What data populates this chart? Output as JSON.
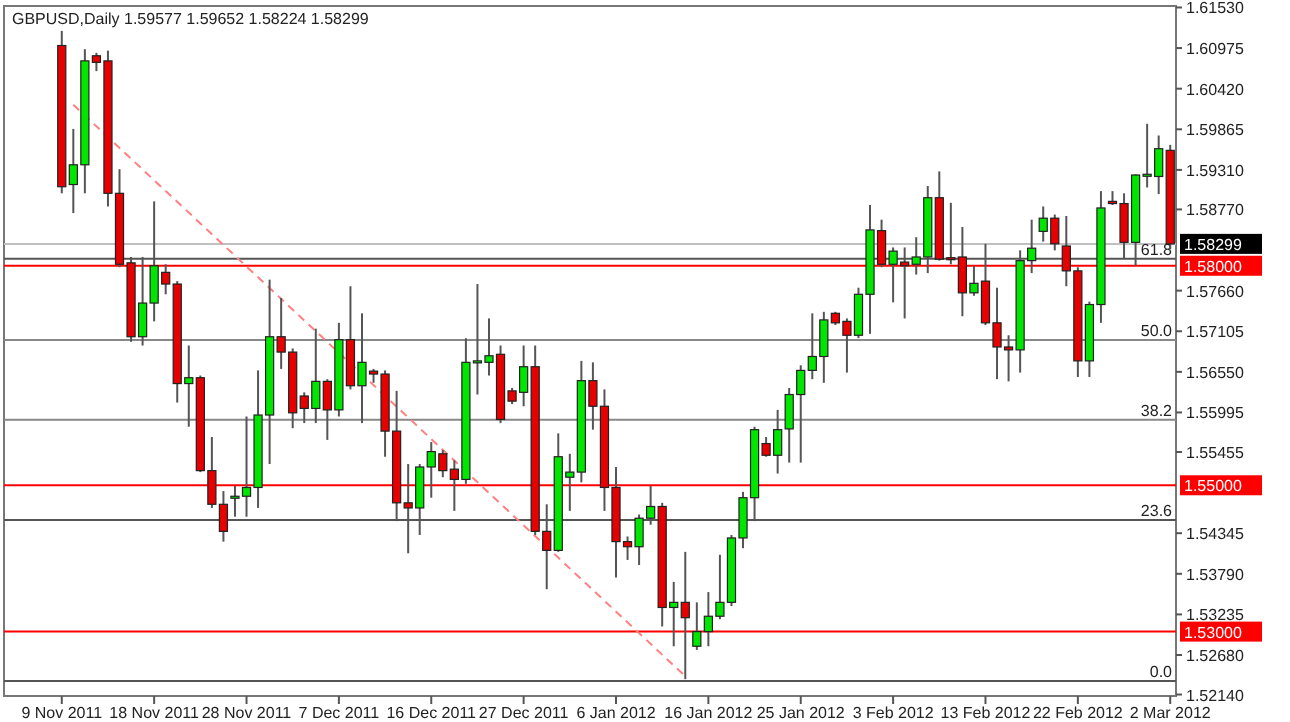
{
  "chart_data": {
    "type": "candlestick",
    "title": "GBPUSD,Daily  1.59577 1.59652 1.58224 1.58299",
    "categories": [
      "9 Nov 2011",
      null,
      null,
      null,
      null,
      null,
      null,
      null,
      "18 Nov 2011",
      null,
      null,
      null,
      null,
      null,
      null,
      null,
      "28 Nov 2011",
      null,
      null,
      null,
      null,
      null,
      null,
      null,
      "7 Dec 2011",
      null,
      null,
      null,
      null,
      null,
      null,
      null,
      "16 Dec 2011",
      null,
      null,
      null,
      null,
      null,
      null,
      null,
      "27 Dec 2011",
      null,
      null,
      null,
      null,
      null,
      null,
      null,
      "6 Jan 2012",
      null,
      null,
      null,
      null,
      null,
      null,
      null,
      "16 Jan 2012",
      null,
      null,
      null,
      null,
      null,
      null,
      null,
      "25 Jan 2012",
      null,
      null,
      null,
      null,
      null,
      null,
      null,
      "3 Feb 2012",
      null,
      null,
      null,
      null,
      null,
      null,
      null,
      "13 Feb 2012",
      null,
      null,
      null,
      null,
      null,
      null,
      null,
      "22 Feb 2012",
      null,
      null,
      null,
      null,
      null,
      null,
      null,
      "2 Mar 2012"
    ],
    "ohlc": [
      [
        1.6101,
        1.6121,
        1.5899,
        1.5908
      ],
      [
        1.5911,
        1.5987,
        1.5872,
        1.5938
      ],
      [
        1.5938,
        1.6096,
        1.5899,
        1.608
      ],
      [
        1.6087,
        1.6091,
        1.6066,
        1.6078
      ],
      [
        1.608,
        1.6094,
        1.5881,
        1.5899
      ],
      [
        1.5899,
        1.5932,
        1.5798,
        1.5802
      ],
      [
        1.5804,
        1.5812,
        1.5696,
        1.5703
      ],
      [
        1.5703,
        1.5812,
        1.5691,
        1.5749
      ],
      [
        1.5749,
        1.5888,
        1.5724,
        1.58
      ],
      [
        1.5791,
        1.5802,
        1.5761,
        1.5775
      ],
      [
        1.5775,
        1.5779,
        1.5613,
        1.5639
      ],
      [
        1.5639,
        1.5691,
        1.558,
        1.5647
      ],
      [
        1.5647,
        1.565,
        1.5518,
        1.552
      ],
      [
        1.552,
        1.5566,
        1.5469,
        1.5474
      ],
      [
        1.5474,
        1.5492,
        1.5423,
        1.5437
      ],
      [
        1.5483,
        1.5499,
        1.5457,
        1.5485
      ],
      [
        1.5485,
        1.5594,
        1.5457,
        1.5497
      ],
      [
        1.5497,
        1.5657,
        1.5469,
        1.5596
      ],
      [
        1.5596,
        1.5781,
        1.5529,
        1.5703
      ],
      [
        1.5703,
        1.5756,
        1.5659,
        1.5682
      ],
      [
        1.5682,
        1.5687,
        1.5578,
        1.5599
      ],
      [
        1.5622,
        1.5627,
        1.5585,
        1.5605
      ],
      [
        1.5605,
        1.5714,
        1.5585,
        1.5642
      ],
      [
        1.5642,
        1.5645,
        1.5562,
        1.5603
      ],
      [
        1.5603,
        1.5722,
        1.5594,
        1.5699
      ],
      [
        1.5699,
        1.5772,
        1.5631,
        1.5636
      ],
      [
        1.5636,
        1.5735,
        1.5585,
        1.5668
      ],
      [
        1.5656,
        1.5659,
        1.564,
        1.5652
      ],
      [
        1.5652,
        1.5657,
        1.5539,
        1.5574
      ],
      [
        1.5574,
        1.5629,
        1.5451,
        1.5476
      ],
      [
        1.5476,
        1.5529,
        1.5407,
        1.5469
      ],
      [
        1.5469,
        1.5529,
        1.5432,
        1.5525
      ],
      [
        1.5525,
        1.5559,
        1.5483,
        1.5546
      ],
      [
        1.5543,
        1.5548,
        1.5511,
        1.552
      ],
      [
        1.5522,
        1.5534,
        1.5465,
        1.5508
      ],
      [
        1.5508,
        1.5701,
        1.5502,
        1.5668
      ],
      [
        1.5668,
        1.5775,
        1.5624,
        1.567
      ],
      [
        1.5668,
        1.5728,
        1.565,
        1.5677
      ],
      [
        1.5679,
        1.5691,
        1.5585,
        1.559
      ],
      [
        1.5629,
        1.5633,
        1.5611,
        1.5615
      ],
      [
        1.5627,
        1.5691,
        1.5608,
        1.5662
      ],
      [
        1.5662,
        1.5691,
        1.5432,
        1.5437
      ],
      [
        1.5437,
        1.5474,
        1.5358,
        1.5411
      ],
      [
        1.5411,
        1.5571,
        1.5409,
        1.5539
      ],
      [
        1.5511,
        1.5543,
        1.5465,
        1.5518
      ],
      [
        1.5518,
        1.567,
        1.5504,
        1.5643
      ],
      [
        1.5643,
        1.5668,
        1.5576,
        1.5608
      ],
      [
        1.5608,
        1.5631,
        1.5465,
        1.5497
      ],
      [
        1.5497,
        1.5525,
        1.5374,
        1.5423
      ],
      [
        1.5423,
        1.543,
        1.5398,
        1.5416
      ],
      [
        1.5416,
        1.546,
        1.5391,
        1.5455
      ],
      [
        1.5455,
        1.5499,
        1.5446,
        1.5471
      ],
      [
        1.5471,
        1.5476,
        1.5307,
        1.5333
      ],
      [
        1.5333,
        1.5368,
        1.528,
        1.534
      ],
      [
        1.534,
        1.5409,
        1.5235,
        1.5319
      ],
      [
        1.528,
        1.534,
        1.5275,
        1.53
      ],
      [
        1.53,
        1.5354,
        1.528,
        1.5321
      ],
      [
        1.5321,
        1.5405,
        1.5317,
        1.534
      ],
      [
        1.534,
        1.5432,
        1.5335,
        1.5428
      ],
      [
        1.5428,
        1.5491,
        1.5414,
        1.5483
      ],
      [
        1.5483,
        1.558,
        1.5451,
        1.5576
      ],
      [
        1.5557,
        1.5566,
        1.5539,
        1.5541
      ],
      [
        1.5541,
        1.5603,
        1.5516,
        1.5576
      ],
      [
        1.5577,
        1.5633,
        1.5531,
        1.5624
      ],
      [
        1.5624,
        1.5664,
        1.5531,
        1.5657
      ],
      [
        1.5657,
        1.5735,
        1.5645,
        1.5676
      ],
      [
        1.5676,
        1.5737,
        1.564,
        1.5726
      ],
      [
        1.5735,
        1.5737,
        1.5719,
        1.5722
      ],
      [
        1.5724,
        1.5728,
        1.5654,
        1.5705
      ],
      [
        1.5705,
        1.577,
        1.5701,
        1.5761
      ],
      [
        1.5761,
        1.5883,
        1.5707,
        1.5849
      ],
      [
        1.5848,
        1.5863,
        1.5798,
        1.5802
      ],
      [
        1.5802,
        1.5825,
        1.575,
        1.582
      ],
      [
        1.5805,
        1.5825,
        1.5728,
        1.58
      ],
      [
        1.5802,
        1.5839,
        1.5788,
        1.5812
      ],
      [
        1.5812,
        1.5909,
        1.579,
        1.5893
      ],
      [
        1.5893,
        1.5929,
        1.5807,
        1.5809
      ],
      [
        1.5811,
        1.5886,
        1.5802,
        1.581
      ],
      [
        1.5812,
        1.5853,
        1.5731,
        1.5763
      ],
      [
        1.5763,
        1.58,
        1.5759,
        1.5776
      ],
      [
        1.5779,
        1.583,
        1.5719,
        1.5722
      ],
      [
        1.5722,
        1.577,
        1.5645,
        1.5689
      ],
      [
        1.5689,
        1.5705,
        1.5642,
        1.5685
      ],
      [
        1.5685,
        1.5821,
        1.5654,
        1.5807
      ],
      [
        1.5807,
        1.5863,
        1.579,
        1.5824
      ],
      [
        1.5847,
        1.5881,
        1.5833,
        1.5865
      ],
      [
        1.5865,
        1.587,
        1.5821,
        1.583
      ],
      [
        1.5827,
        1.5868,
        1.5772,
        1.5793
      ],
      [
        1.5793,
        1.5798,
        1.5648,
        1.567
      ],
      [
        1.567,
        1.5751,
        1.5648,
        1.5747
      ],
      [
        1.5747,
        1.5902,
        1.5722,
        1.5879
      ],
      [
        1.5888,
        1.5902,
        1.5883,
        1.5885
      ],
      [
        1.5885,
        1.5899,
        1.5809,
        1.5832
      ],
      [
        1.5832,
        1.5925,
        1.58,
        1.5924
      ],
      [
        1.5924,
        1.5994,
        1.5907,
        1.5925
      ],
      [
        1.5922,
        1.5978,
        1.5898,
        1.596
      ],
      [
        1.59577,
        1.59652,
        1.58224,
        1.58299
      ]
    ],
    "colors": [
      "#e60000",
      "#00e600",
      "#00e600",
      "#e60000",
      "#e60000",
      "#e60000",
      "#e60000",
      "#00e600",
      "#00e600",
      "#e60000",
      "#e60000",
      "#00e600",
      "#e60000",
      "#e60000",
      "#e60000",
      "#00e600",
      "#00e600",
      "#00e600",
      "#00e600",
      "#e60000",
      "#e60000",
      "#e60000",
      "#00e600",
      "#e60000",
      "#00e600",
      "#e60000",
      "#00e600",
      "#e60000",
      "#e60000",
      "#e60000",
      "#e60000",
      "#00e600",
      "#00e600",
      "#e60000",
      "#e60000",
      "#00e600",
      "#00e600",
      "#00e600",
      "#e60000",
      "#e60000",
      "#00e600",
      "#e60000",
      "#e60000",
      "#00e600",
      "#00e600",
      "#00e600",
      "#e60000",
      "#e60000",
      "#e60000",
      "#e60000",
      "#00e600",
      "#00e600",
      "#e60000",
      "#00e600",
      "#e60000",
      "#00e600",
      "#00e600",
      "#00e600",
      "#00e600",
      "#00e600",
      "#00e600",
      "#e60000",
      "#00e600",
      "#00e600",
      "#00e600",
      "#00e600",
      "#00e600",
      "#e60000",
      "#e60000",
      "#00e600",
      "#00e600",
      "#e60000",
      "#00e600",
      "#e60000",
      "#00e600",
      "#00e600",
      "#e60000",
      "#e60000",
      "#e60000",
      "#00e600",
      "#e60000",
      "#e60000",
      "#e60000",
      "#00e600",
      "#00e600",
      "#00e600",
      "#e60000",
      "#e60000",
      "#e60000",
      "#00e600",
      "#00e600",
      "#e60000",
      "#e60000",
      "#00e600",
      "#00e600",
      "#00e600",
      "#e60000"
    ],
    "series": [
      {
        "type": "line",
        "color": "#ff8080",
        "line_style": "dashed",
        "values": [
          null,
          1.602,
          null,
          null,
          null,
          null,
          null,
          null,
          null,
          null,
          null,
          null,
          null,
          null,
          null,
          null,
          null,
          null,
          null,
          null,
          null,
          null,
          null,
          null,
          null,
          null,
          null,
          null,
          null,
          null,
          null,
          null,
          null,
          null,
          null,
          null,
          null,
          null,
          null,
          null,
          null,
          null,
          null,
          null,
          null,
          null,
          null,
          null,
          null,
          null,
          null,
          null,
          null,
          null,
          1.5239,
          null,
          null,
          null,
          null,
          null,
          null,
          null,
          null,
          null,
          null,
          null,
          null,
          null,
          null,
          null,
          null,
          null,
          null,
          null,
          null,
          null,
          null,
          null,
          null,
          null,
          null,
          null,
          null,
          null,
          null,
          null,
          null,
          null,
          null,
          null,
          null,
          null,
          null,
          null,
          null,
          null,
          null
        ]
      }
    ],
    "ylim": [
      1.5212,
      1.6155
    ],
    "yticks": [
      {
        "value": 1.6153,
        "label": "1.61530"
      },
      1.60975,
      {
        "value": 1.6042,
        "label": "1.60420"
      },
      1.59865,
      {
        "value": 1.5931,
        "label": "1.59310"
      },
      {
        "value": 1.5877,
        "label": "1.58770"
      },
      {
        "value": 1.5766,
        "label": "1.57660"
      },
      1.57105,
      {
        "value": 1.5655,
        "label": "1.56550"
      },
      1.55995,
      1.55455,
      1.54345,
      {
        "value": 1.5379,
        "label": "1.53790"
      },
      1.53235,
      {
        "value": 1.5268,
        "label": "1.52680"
      },
      {
        "value": 1.5214,
        "label": "1.52140"
      }
    ],
    "ref_lines": [
      {
        "axis": "y",
        "value": 1.58299,
        "label": "1.58299",
        "color": "#c0c0c0"
      },
      {
        "axis": "y",
        "value": 1.58,
        "label": "1.58000",
        "color": "#ff0000"
      },
      {
        "axis": "y",
        "value": 1.55,
        "label": "1.55000",
        "color": "#ff0000"
      },
      {
        "axis": "y",
        "value": 1.53,
        "label": "1.53000",
        "color": "#ff0000"
      },
      {
        "axis": "y",
        "value": 1.58097,
        "color": "#555555"
      },
      {
        "axis": "y",
        "value": 1.56987,
        "color": "#888888"
      },
      {
        "axis": "y",
        "value": 1.55896,
        "color": "#888888"
      },
      {
        "axis": "y",
        "value": 1.54527,
        "color": "#555555"
      },
      {
        "axis": "y",
        "value": 1.52325,
        "color": "#555555"
      }
    ],
    "annotations": [
      {
        "text": "61.8",
        "y": 1.58097
      },
      {
        "text": "50.0",
        "y": 1.56987
      },
      {
        "text": "38.2",
        "y": 1.55896
      },
      {
        "text": "23.6",
        "y": 1.54527
      },
      {
        "text": "0.0",
        "y": 1.52325
      }
    ],
    "grid": false
  }
}
